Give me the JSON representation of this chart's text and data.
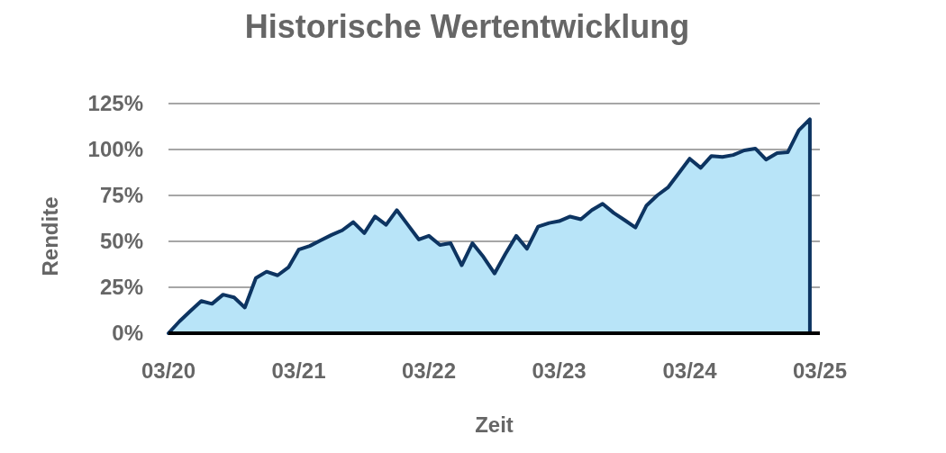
{
  "chart_data": {
    "type": "area",
    "title": "Historische Wertentwicklung",
    "xlabel": "Zeit",
    "ylabel": "Rendite",
    "x": [
      "2020-03",
      "2020-04",
      "2020-05",
      "2020-06",
      "2020-07",
      "2020-08",
      "2020-09",
      "2020-10",
      "2020-11",
      "2020-12",
      "2021-01",
      "2021-02",
      "2021-03",
      "2021-04",
      "2021-05",
      "2021-06",
      "2021-07",
      "2021-08",
      "2021-09",
      "2021-10",
      "2021-11",
      "2021-12",
      "2022-01",
      "2022-02",
      "2022-03",
      "2022-04",
      "2022-05",
      "2022-06",
      "2022-07",
      "2022-08",
      "2022-09",
      "2022-10",
      "2022-11",
      "2022-12",
      "2023-01",
      "2023-02",
      "2023-03",
      "2023-04",
      "2023-05",
      "2023-06",
      "2023-07",
      "2023-08",
      "2023-09",
      "2023-10",
      "2023-11",
      "2023-12",
      "2024-01",
      "2024-02",
      "2024-03",
      "2024-04",
      "2024-05",
      "2024-06",
      "2024-07",
      "2024-08",
      "2024-09",
      "2024-10",
      "2024-11",
      "2024-12",
      "2025-01",
      "2025-02"
    ],
    "series": [
      {
        "color": "#b8e4f8",
        "values": [
          0,
          6.5,
          12,
          17.5,
          16,
          21,
          19.5,
          14,
          30,
          33.5,
          31.5,
          36,
          45.5,
          47.5,
          50.5,
          53.5,
          56,
          60.5,
          54.5,
          63.5,
          59,
          67,
          59,
          51,
          53,
          48,
          49,
          37,
          49,
          41.5,
          32.5,
          43,
          53,
          46,
          58,
          60,
          61,
          63.5,
          62,
          67,
          70.5,
          65.5,
          61.5,
          57.5,
          69.5,
          75,
          79.5,
          87.5,
          95,
          90,
          96.5,
          96,
          97,
          99.5,
          100.5,
          94.5,
          98,
          98.5,
          110.5,
          116.5
        ]
      }
    ],
    "xlim": [
      "2020-03",
      "2025-03"
    ],
    "xticks": [
      {
        "value": "2020-03",
        "label": "03/20"
      },
      {
        "value": "2021-03",
        "label": "03/21"
      },
      {
        "value": "2022-03",
        "label": "03/22"
      },
      {
        "value": "2023-03",
        "label": "03/23"
      },
      {
        "value": "2024-03",
        "label": "03/24"
      },
      {
        "value": "2025-03",
        "label": "03/25"
      }
    ],
    "ylim": [
      0,
      125
    ],
    "yticks": [
      {
        "value": 0,
        "label": "0%"
      },
      {
        "value": 25,
        "label": "25%"
      },
      {
        "value": 50,
        "label": "50%"
      },
      {
        "value": 75,
        "label": "75%"
      },
      {
        "value": 100,
        "label": "100%"
      },
      {
        "value": 125,
        "label": "125%"
      }
    ],
    "grid": "y"
  }
}
